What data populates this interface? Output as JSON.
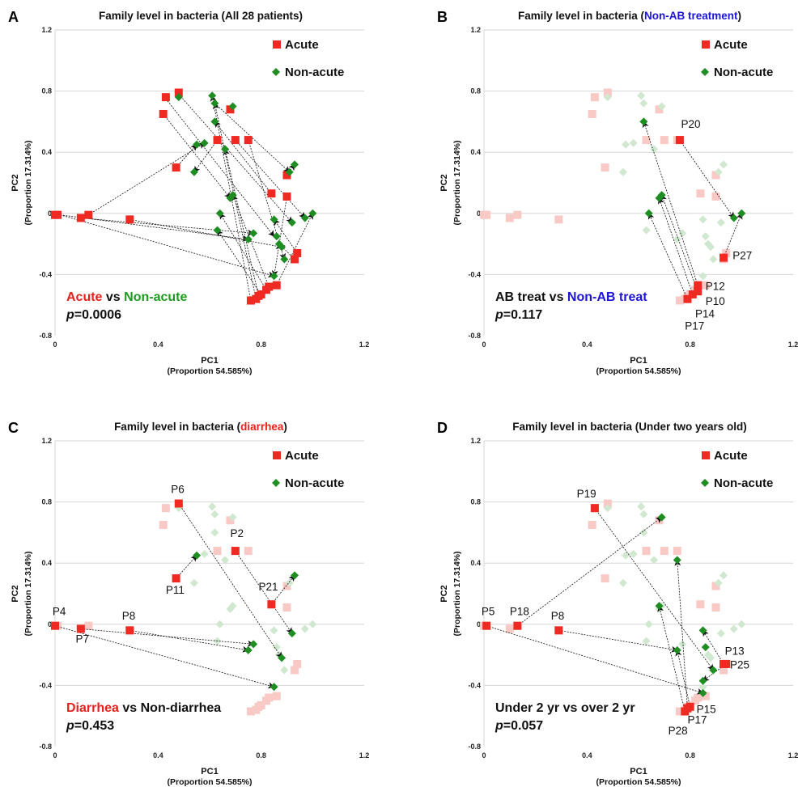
{
  "colors": {
    "acute": "#ee2a23",
    "acute_faded": "#f9c9c6",
    "nonacute": "#1f8e22",
    "nonacute_faded": "#cfe8cf",
    "red_text": "#e8201a",
    "green_text": "#1f9a20",
    "blue_text": "#1c14d8",
    "grid": "#d6d6d6"
  },
  "chart_data": [
    {
      "panel": "A",
      "type": "scatter",
      "title_parts": [
        {
          "text": "Family level in bacteria (All 28 patients)",
          "color": "dark"
        }
      ],
      "xlabel": "PC1",
      "xlabel_sub": "(Proportion 54.585%)",
      "ylabel": "PC2",
      "ylabel_sub": "(Proportion 17.314%)",
      "xlim": [
        0,
        1.2
      ],
      "ylim": [
        -0.8,
        1.2
      ],
      "xticks": [
        "0",
        "0.4",
        "0.8",
        "1.2"
      ],
      "yticks": [
        "-0.8",
        "-0.4",
        "0",
        "0.4",
        "0.8",
        "1.2"
      ],
      "legend": [
        "Acute",
        "Non-acute"
      ],
      "legend_position": "top-right",
      "comparison": [
        {
          "text": "Acute",
          "color": "red"
        },
        {
          "text": " vs ",
          "color": "dark"
        },
        {
          "text": "Non-acute",
          "color": "green"
        }
      ],
      "pvalue": "=0.0006",
      "faded_background": false,
      "acute": [
        [
          0,
          -0.01
        ],
        [
          0.01,
          -0.01
        ],
        [
          0.1,
          -0.03
        ],
        [
          0.13,
          -0.01
        ],
        [
          0.29,
          -0.04
        ],
        [
          0.42,
          0.65
        ],
        [
          0.43,
          0.76
        ],
        [
          0.47,
          0.3
        ],
        [
          0.48,
          0.79
        ],
        [
          0.63,
          0.48
        ],
        [
          0.68,
          0.68
        ],
        [
          0.7,
          0.48
        ],
        [
          0.75,
          0.48
        ],
        [
          0.76,
          -0.57
        ],
        [
          0.78,
          -0.56
        ],
        [
          0.79,
          -0.54
        ],
        [
          0.8,
          -0.53
        ],
        [
          0.82,
          -0.5
        ],
        [
          0.83,
          -0.48
        ],
        [
          0.84,
          0.13
        ],
        [
          0.86,
          -0.47
        ],
        [
          0.9,
          0.11
        ],
        [
          0.9,
          0.25
        ],
        [
          0.93,
          -0.3
        ],
        [
          0.94,
          -0.26
        ]
      ],
      "nonacute": [
        [
          0.48,
          0.76
        ],
        [
          0.55,
          0.45
        ],
        [
          0.58,
          0.46
        ],
        [
          0.54,
          0.27
        ],
        [
          0.61,
          0.77
        ],
        [
          0.62,
          0.6
        ],
        [
          0.62,
          0.72
        ],
        [
          0.63,
          -0.11
        ],
        [
          0.64,
          0.0
        ],
        [
          0.66,
          0.42
        ],
        [
          0.68,
          0.1
        ],
        [
          0.69,
          0.12
        ],
        [
          0.69,
          0.7
        ],
        [
          0.75,
          -0.17
        ],
        [
          0.77,
          -0.13
        ],
        [
          0.85,
          -0.04
        ],
        [
          0.85,
          -0.41
        ],
        [
          0.86,
          -0.15
        ],
        [
          0.87,
          -0.2
        ],
        [
          0.88,
          -0.22
        ],
        [
          0.89,
          -0.3
        ],
        [
          0.91,
          0.27
        ],
        [
          0.92,
          -0.06
        ],
        [
          0.93,
          0.32
        ],
        [
          0.97,
          -0.03
        ],
        [
          1.0,
          0.0
        ]
      ],
      "arrows": [
        [
          0.12,
          -0.02,
          0.58,
          0.46
        ],
        [
          0.02,
          -0.01,
          0.75,
          -0.17
        ],
        [
          0.02,
          -0.01,
          0.85,
          -0.41
        ],
        [
          0.1,
          -0.03,
          0.77,
          -0.13
        ],
        [
          0.29,
          -0.04,
          0.88,
          -0.22
        ],
        [
          0.43,
          0.75,
          0.85,
          -0.15
        ],
        [
          0.48,
          0.78,
          0.92,
          -0.06
        ],
        [
          0.42,
          0.65,
          0.68,
          0.1
        ],
        [
          0.47,
          0.3,
          0.55,
          0.45
        ],
        [
          0.48,
          0.79,
          0.48,
          0.76
        ],
        [
          0.63,
          0.48,
          0.54,
          0.27
        ],
        [
          0.68,
          0.68,
          0.69,
          0.7
        ],
        [
          0.7,
          0.48,
          0.97,
          -0.03
        ],
        [
          0.75,
          0.48,
          0.89,
          -0.3
        ],
        [
          0.9,
          0.25,
          0.93,
          0.32
        ],
        [
          0.84,
          0.13,
          0.62,
          0.6
        ],
        [
          0.76,
          -0.57,
          0.61,
          0.77
        ],
        [
          0.78,
          -0.56,
          0.62,
          0.72
        ],
        [
          0.79,
          -0.54,
          0.66,
          0.42
        ],
        [
          0.8,
          -0.53,
          0.63,
          -0.11
        ],
        [
          0.82,
          -0.5,
          0.64,
          0.0
        ],
        [
          0.83,
          -0.48,
          0.69,
          0.12
        ],
        [
          0.86,
          -0.47,
          1.0,
          0.0
        ],
        [
          0.93,
          -0.3,
          0.87,
          -0.2
        ],
        [
          0.94,
          -0.26,
          0.85,
          -0.04
        ],
        [
          0.9,
          0.11,
          0.85,
          -0.41
        ],
        [
          0.62,
          0.72,
          0.91,
          0.27
        ]
      ],
      "labels": []
    },
    {
      "panel": "B",
      "type": "scatter",
      "title_parts": [
        {
          "text": "Family level in bacteria (",
          "color": "dark"
        },
        {
          "text": "Non-AB treatment",
          "color": "blue"
        },
        {
          "text": ")",
          "color": "dark"
        }
      ],
      "xlabel": "PC1",
      "xlabel_sub": "(Proportion 54.585%)",
      "ylabel": "PC2",
      "ylabel_sub": "(Proportion 17.314%)",
      "xlim": [
        0,
        1.2
      ],
      "ylim": [
        -0.8,
        1.2
      ],
      "xticks": [
        "0",
        "0.4",
        "0.8",
        "1.2"
      ],
      "yticks": [
        "-0.8",
        "-0.4",
        "0",
        "0.4",
        "0.8",
        "1.2"
      ],
      "legend": [
        "Acute",
        "Non-acute"
      ],
      "legend_position": "top-right",
      "comparison": [
        {
          "text": "AB treat vs ",
          "color": "dark"
        },
        {
          "text": "Non-AB treat",
          "color": "blue"
        }
      ],
      "pvalue": "=0.117",
      "faded_background": true,
      "acute": [
        [
          0.76,
          0.48
        ],
        [
          0.93,
          -0.29
        ],
        [
          0.83,
          -0.47
        ],
        [
          0.83,
          -0.51
        ],
        [
          0.81,
          -0.53
        ],
        [
          0.79,
          -0.56
        ]
      ],
      "nonacute": [
        [
          0.62,
          0.6
        ],
        [
          0.64,
          0.0
        ],
        [
          0.68,
          0.1
        ],
        [
          0.69,
          0.12
        ],
        [
          0.97,
          -0.03
        ],
        [
          1.0,
          0.0
        ]
      ],
      "arrows": [
        [
          0.76,
          0.48,
          0.97,
          -0.03
        ],
        [
          0.93,
          -0.29,
          1.0,
          0.0
        ],
        [
          0.83,
          -0.47,
          0.62,
          0.6
        ],
        [
          0.83,
          -0.51,
          0.69,
          0.12
        ],
        [
          0.81,
          -0.53,
          0.68,
          0.1
        ],
        [
          0.79,
          -0.56,
          0.64,
          0.0
        ]
      ],
      "labels": [
        {
          "text": "P20",
          "x": 0.765,
          "y": 0.56,
          "anchor": "start"
        },
        {
          "text": "P27",
          "x": 0.965,
          "y": -0.3,
          "anchor": "start"
        },
        {
          "text": "P12",
          "x": 0.86,
          "y": -0.5,
          "anchor": "start"
        },
        {
          "text": "P10",
          "x": 0.86,
          "y": -0.6,
          "anchor": "start"
        },
        {
          "text": "P14",
          "x": 0.82,
          "y": -0.68,
          "anchor": "start"
        },
        {
          "text": "P17",
          "x": 0.78,
          "y": -0.76,
          "anchor": "start"
        }
      ]
    },
    {
      "panel": "C",
      "type": "scatter",
      "title_parts": [
        {
          "text": "Family level in bacteria (",
          "color": "dark"
        },
        {
          "text": "diarrhea",
          "color": "red"
        },
        {
          "text": ")",
          "color": "dark"
        }
      ],
      "xlabel": "PC1",
      "xlabel_sub": "(Proportion 54.585%)",
      "ylabel": "PC2",
      "ylabel_sub": "(Proportion 17.314%)",
      "xlim": [
        0,
        1.2
      ],
      "ylim": [
        -0.8,
        1.2
      ],
      "xticks": [
        "0",
        "0.4",
        "0.8",
        "1.2"
      ],
      "yticks": [
        "-0.8",
        "-0.4",
        "0",
        "0.4",
        "0.8",
        "1.2"
      ],
      "legend": [
        "Acute",
        "Non-acute"
      ],
      "legend_position": "top-right",
      "comparison": [
        {
          "text": "Diarrhea",
          "color": "red"
        },
        {
          "text": " vs Non-diarrhea",
          "color": "dark"
        }
      ],
      "pvalue": "=0.453",
      "faded_background": true,
      "acute": [
        [
          0.0,
          -0.01
        ],
        [
          0.1,
          -0.03
        ],
        [
          0.29,
          -0.04
        ],
        [
          0.47,
          0.3
        ],
        [
          0.48,
          0.79
        ],
        [
          0.7,
          0.48
        ],
        [
          0.84,
          0.13
        ]
      ],
      "nonacute": [
        [
          0.55,
          0.45
        ],
        [
          0.75,
          -0.17
        ],
        [
          0.77,
          -0.13
        ],
        [
          0.85,
          -0.41
        ],
        [
          0.88,
          -0.22
        ],
        [
          0.92,
          -0.06
        ],
        [
          0.93,
          0.32
        ]
      ],
      "arrows": [
        [
          0.0,
          -0.01,
          0.85,
          -0.41
        ],
        [
          0.1,
          -0.03,
          0.77,
          -0.13
        ],
        [
          0.29,
          -0.04,
          0.75,
          -0.17
        ],
        [
          0.47,
          0.3,
          0.55,
          0.45
        ],
        [
          0.48,
          0.79,
          0.88,
          -0.22
        ],
        [
          0.7,
          0.48,
          0.92,
          -0.06
        ],
        [
          0.84,
          0.13,
          0.93,
          0.32
        ]
      ],
      "labels": [
        {
          "text": "P6",
          "x": 0.45,
          "y": 0.86,
          "anchor": "start"
        },
        {
          "text": "P2",
          "x": 0.68,
          "y": 0.57,
          "anchor": "start"
        },
        {
          "text": "P11",
          "x": 0.43,
          "y": 0.2,
          "anchor": "start"
        },
        {
          "text": "P21",
          "x": 0.79,
          "y": 0.22,
          "anchor": "start"
        },
        {
          "text": "P4",
          "x": -0.01,
          "y": 0.06,
          "anchor": "start"
        },
        {
          "text": "P7",
          "x": 0.08,
          "y": -0.12,
          "anchor": "start"
        },
        {
          "text": "P8",
          "x": 0.26,
          "y": 0.03,
          "anchor": "start"
        }
      ]
    },
    {
      "panel": "D",
      "type": "scatter",
      "title_parts": [
        {
          "text": "Family level in bacteria (Under two years old)",
          "color": "dark"
        }
      ],
      "xlabel": "PC1",
      "xlabel_sub": "(Proportion 54.585%)",
      "ylabel": "PC2",
      "ylabel_sub": "(Proportion 17.314%)",
      "xlim": [
        0,
        1.2
      ],
      "ylim": [
        -0.8,
        1.2
      ],
      "xticks": [
        "0",
        "0.4",
        "0.8",
        "1.2"
      ],
      "yticks": [
        "-0.8",
        "-0.4",
        "0",
        "0.4",
        "0.8",
        "1.2"
      ],
      "legend": [
        "Acute",
        "Non-acute"
      ],
      "legend_position": "top-right",
      "comparison": [
        {
          "text": "Under 2 yr vs over 2 yr",
          "color": "dark"
        }
      ],
      "pvalue": "=0.057",
      "faded_background": true,
      "acute": [
        [
          0.01,
          -0.01
        ],
        [
          0.13,
          -0.01
        ],
        [
          0.29,
          -0.04
        ],
        [
          0.43,
          0.76
        ],
        [
          0.78,
          -0.57
        ],
        [
          0.79,
          -0.55
        ],
        [
          0.8,
          -0.54
        ],
        [
          0.93,
          -0.26
        ],
        [
          0.94,
          -0.26
        ]
      ],
      "nonacute": [
        [
          0.68,
          0.12
        ],
        [
          0.69,
          0.7
        ],
        [
          0.75,
          0.42
        ],
        [
          0.75,
          -0.17
        ],
        [
          0.85,
          -0.04
        ],
        [
          0.86,
          -0.15
        ],
        [
          0.85,
          -0.45
        ],
        [
          0.89,
          -0.3
        ],
        [
          0.85,
          -0.37
        ]
      ],
      "arrows": [
        [
          0.01,
          -0.01,
          0.85,
          -0.45
        ],
        [
          0.13,
          -0.01,
          0.69,
          0.7
        ],
        [
          0.29,
          -0.04,
          0.75,
          -0.17
        ],
        [
          0.43,
          0.76,
          0.89,
          -0.3
        ],
        [
          0.78,
          -0.57,
          0.68,
          0.12
        ],
        [
          0.79,
          -0.55,
          0.75,
          0.42
        ],
        [
          0.8,
          -0.54,
          0.75,
          -0.17
        ],
        [
          0.93,
          -0.26,
          0.85,
          -0.04
        ],
        [
          0.94,
          -0.26,
          0.85,
          -0.37
        ]
      ],
      "labels": [
        {
          "text": "P19",
          "x": 0.36,
          "y": 0.83,
          "anchor": "start"
        },
        {
          "text": "P5",
          "x": -0.01,
          "y": 0.06,
          "anchor": "start"
        },
        {
          "text": "P18",
          "x": 0.1,
          "y": 0.06,
          "anchor": "start"
        },
        {
          "text": "P8",
          "x": 0.26,
          "y": 0.03,
          "anchor": "start"
        },
        {
          "text": "P13",
          "x": 0.935,
          "y": -0.2,
          "anchor": "start"
        },
        {
          "text": "P25",
          "x": 0.955,
          "y": -0.29,
          "anchor": "start"
        },
        {
          "text": "P15",
          "x": 0.825,
          "y": -0.58,
          "anchor": "start"
        },
        {
          "text": "P17",
          "x": 0.79,
          "y": -0.65,
          "anchor": "start"
        },
        {
          "text": "P28",
          "x": 0.715,
          "y": -0.72,
          "anchor": "start"
        }
      ]
    }
  ]
}
